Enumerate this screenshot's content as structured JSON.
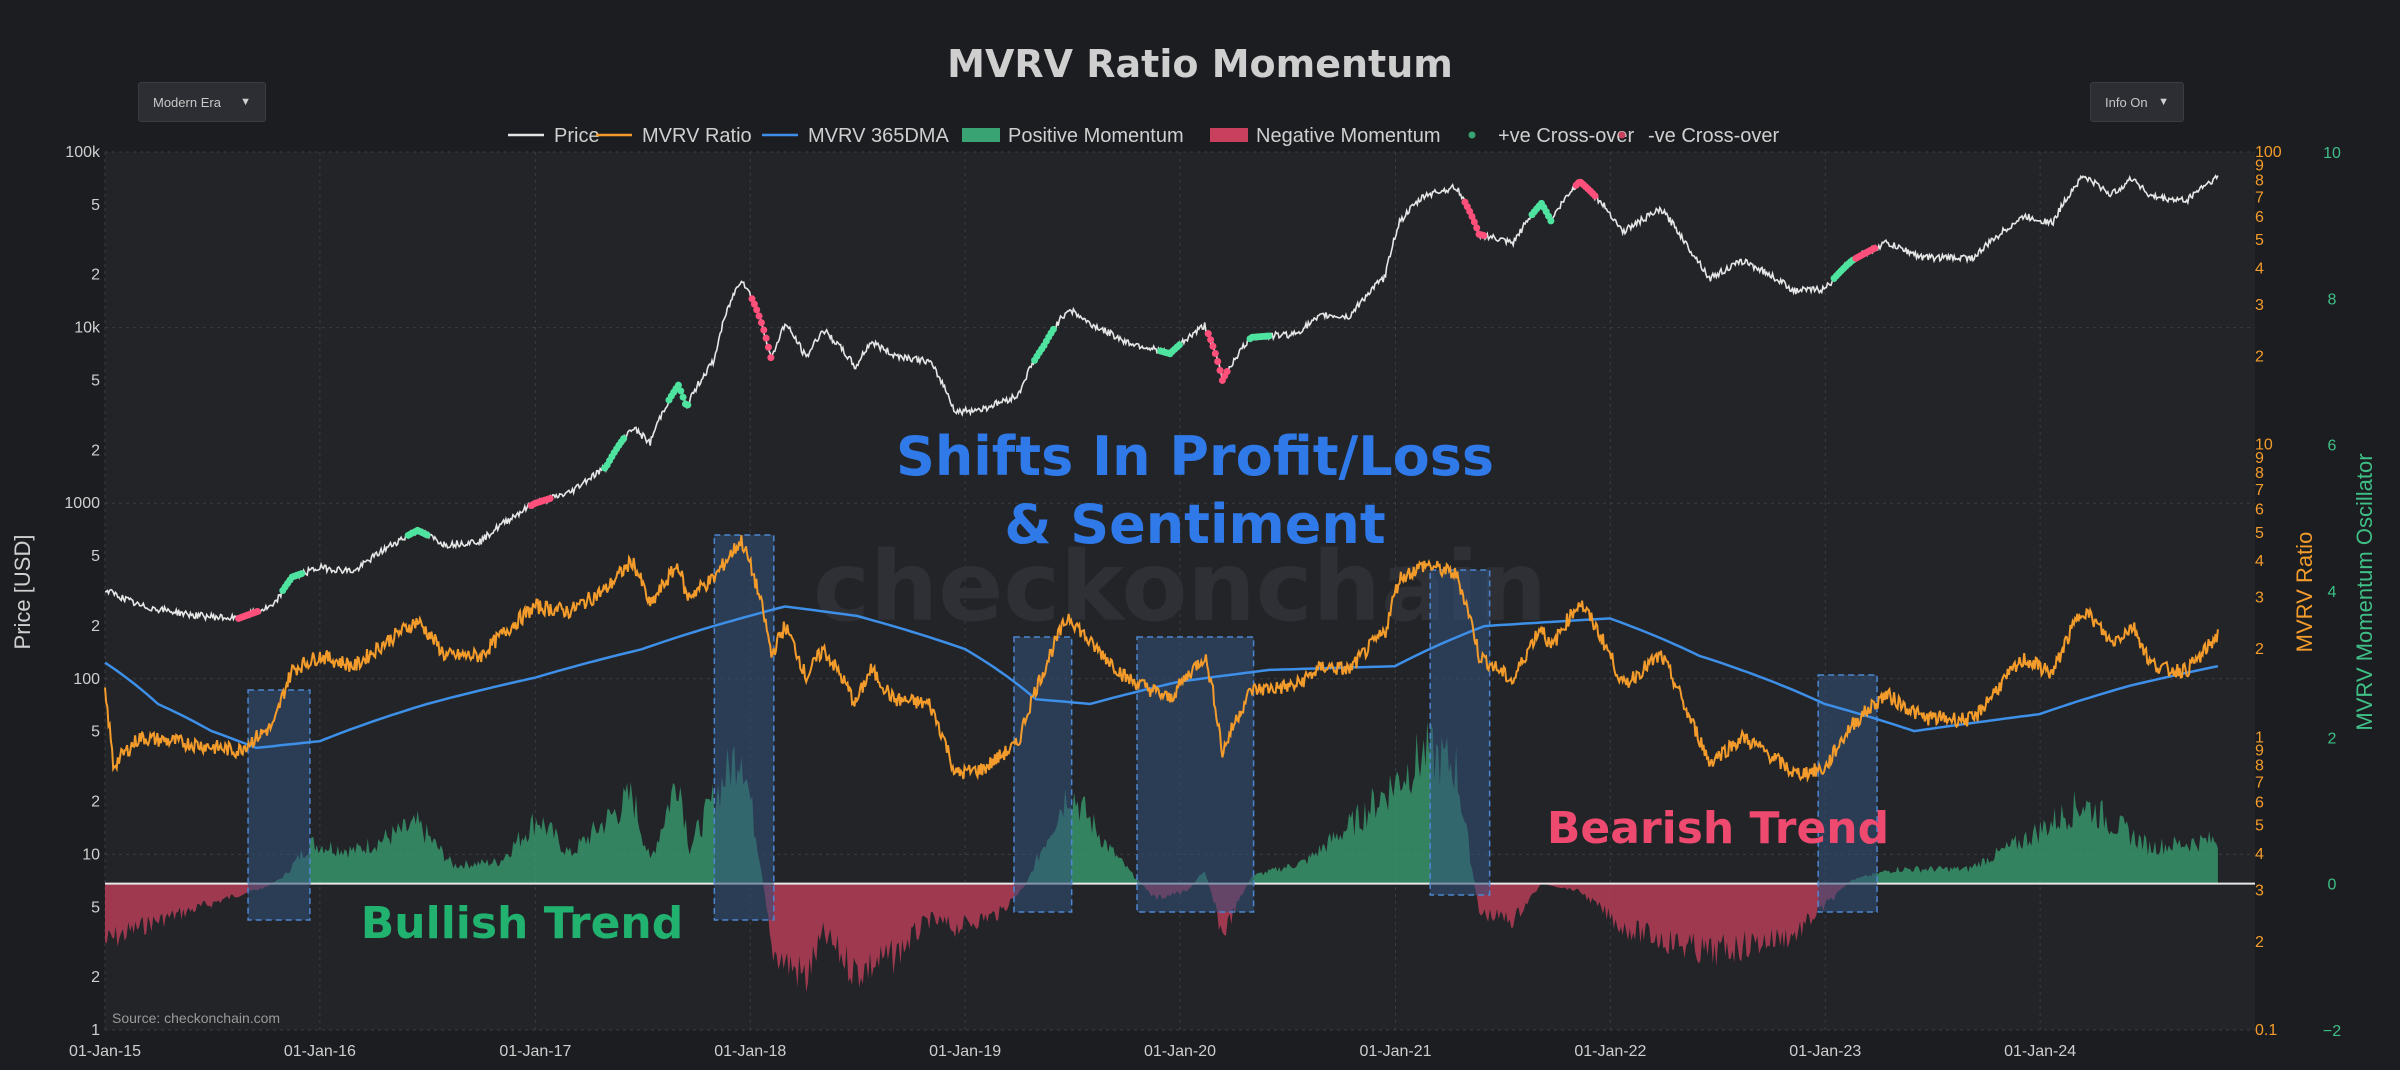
{
  "title": "MVRV Ratio Momentum",
  "controls": {
    "era_dropdown": "Modern Era",
    "info_dropdown": "Info On"
  },
  "source": "Source: checkonchain.com",
  "watermark": "checkonchain",
  "colors": {
    "background": "#1c1d21",
    "plot_bg": "#232428",
    "price": "#e6e6e6",
    "mvrv": "#f39c2b",
    "dma": "#3d8fe8",
    "positive": "#3aa374",
    "negative": "#c9405e",
    "pos_cross": "#4fe3a0",
    "neg_cross": "#ff4f7b",
    "highlight": "#33517a"
  },
  "chart_data": {
    "type": "line",
    "legend": [
      "Price",
      "MVRV Ratio",
      "MVRV 365DMA",
      "Positive Momentum",
      "Negative Momentum",
      "+ve Cross-over",
      "-ve Cross-over"
    ],
    "axes": {
      "x_ticks": [
        "01-Jan-15",
        "01-Jan-16",
        "01-Jan-17",
        "01-Jan-18",
        "01-Jan-19",
        "01-Jan-20",
        "01-Jan-21",
        "01-Jan-22",
        "01-Jan-23",
        "01-Jan-24"
      ],
      "x_range": [
        "2015-01-01",
        "2024-12-31"
      ],
      "price": {
        "title": "Price [USD]",
        "scale": "log",
        "range": [
          1,
          100000
        ],
        "ticks": [
          "100k",
          "5",
          "2",
          "10k",
          "5",
          "2",
          "1000",
          "5",
          "2",
          "100",
          "5",
          "2",
          "10",
          "5",
          "2",
          "1"
        ]
      },
      "mvrv": {
        "title": "MVRV Ratio",
        "scale": "log",
        "range": [
          0.1,
          100
        ],
        "ticks": [
          "100",
          "9",
          "8",
          "7",
          "6",
          "5",
          "4",
          "3",
          "2",
          "10",
          "9",
          "8",
          "7",
          "6",
          "5",
          "4",
          "3",
          "2",
          "1",
          "9",
          "8",
          "7",
          "6",
          "5",
          "4",
          "3",
          "2",
          "0.1"
        ]
      },
      "oscillator": {
        "title": "MVRV Momentum Oscillator",
        "range": [
          -2,
          10
        ],
        "ticks": [
          "10",
          "8",
          "6",
          "4",
          "2",
          "0",
          "−2"
        ]
      }
    },
    "price_series": [
      [
        "2015-01-01",
        320
      ],
      [
        "2015-03-01",
        260
      ],
      [
        "2015-06-01",
        230
      ],
      [
        "2015-08-15",
        220
      ],
      [
        "2015-10-15",
        260
      ],
      [
        "2015-11-15",
        380
      ],
      [
        "2016-01-01",
        430
      ],
      [
        "2016-03-01",
        410
      ],
      [
        "2016-06-15",
        700
      ],
      [
        "2016-08-01",
        580
      ],
      [
        "2016-10-01",
        610
      ],
      [
        "2017-01-01",
        1000
      ],
      [
        "2017-03-01",
        1150
      ],
      [
        "2017-05-01",
        1600
      ],
      [
        "2017-06-15",
        2700
      ],
      [
        "2017-07-15",
        2200
      ],
      [
        "2017-09-01",
        4700
      ],
      [
        "2017-09-15",
        3500
      ],
      [
        "2017-11-01",
        6500
      ],
      [
        "2017-12-17",
        19000
      ],
      [
        "2018-02-06",
        6500
      ],
      [
        "2018-03-01",
        10500
      ],
      [
        "2018-04-06",
        6700
      ],
      [
        "2018-05-05",
        9700
      ],
      [
        "2018-06-29",
        5900
      ],
      [
        "2018-07-25",
        8300
      ],
      [
        "2018-09-01",
        7000
      ],
      [
        "2018-11-01",
        6400
      ],
      [
        "2018-12-15",
        3300
      ],
      [
        "2019-02-01",
        3450
      ],
      [
        "2019-04-01",
        4100
      ],
      [
        "2019-05-15",
        7900
      ],
      [
        "2019-06-26",
        12800
      ],
      [
        "2019-08-01",
        10500
      ],
      [
        "2019-10-01",
        8300
      ],
      [
        "2019-12-15",
        7100
      ],
      [
        "2020-02-12",
        10300
      ],
      [
        "2020-03-13",
        5000
      ],
      [
        "2020-05-01",
        8800
      ],
      [
        "2020-07-15",
        9200
      ],
      [
        "2020-09-01",
        11800
      ],
      [
        "2020-10-15",
        11500
      ],
      [
        "2020-12-15",
        19500
      ],
      [
        "2021-01-08",
        40000
      ],
      [
        "2021-02-21",
        57000
      ],
      [
        "2021-04-14",
        63000
      ],
      [
        "2021-05-23",
        34000
      ],
      [
        "2021-07-20",
        30000
      ],
      [
        "2021-09-06",
        51000
      ],
      [
        "2021-09-22",
        40500
      ],
      [
        "2021-11-10",
        68000
      ],
      [
        "2022-01-22",
        35000
      ],
      [
        "2022-03-28",
        47000
      ],
      [
        "2022-05-12",
        29000
      ],
      [
        "2022-06-18",
        19000
      ],
      [
        "2022-08-15",
        24000
      ],
      [
        "2022-11-10",
        16200
      ],
      [
        "2023-01-01",
        16600
      ],
      [
        "2023-02-15",
        24000
      ],
      [
        "2023-04-14",
        30400
      ],
      [
        "2023-06-15",
        25100
      ],
      [
        "2023-09-11",
        25000
      ],
      [
        "2023-10-24",
        34000
      ],
      [
        "2023-12-05",
        43000
      ],
      [
        "2024-01-23",
        39500
      ],
      [
        "2024-03-14",
        73000
      ],
      [
        "2024-05-01",
        57000
      ],
      [
        "2024-06-07",
        71000
      ],
      [
        "2024-07-05",
        56000
      ],
      [
        "2024-08-05",
        54000
      ],
      [
        "2024-09-06",
        53000
      ],
      [
        "2024-10-01",
        63000
      ],
      [
        "2024-10-29",
        72000
      ]
    ],
    "mvrv_series": [
      [
        "2015-01-01",
        1.4
      ],
      [
        "2015-01-15",
        0.8
      ],
      [
        "2015-03-01",
        1.0
      ],
      [
        "2015-06-01",
        0.95
      ],
      [
        "2015-08-15",
        0.9
      ],
      [
        "2015-10-15",
        1.1
      ],
      [
        "2015-11-15",
        1.7
      ],
      [
        "2016-01-01",
        1.9
      ],
      [
        "2016-03-01",
        1.75
      ],
      [
        "2016-06-15",
        2.5
      ],
      [
        "2016-08-01",
        1.9
      ],
      [
        "2016-10-01",
        1.9
      ],
      [
        "2017-01-01",
        2.8
      ],
      [
        "2017-03-01",
        2.7
      ],
      [
        "2017-05-01",
        3.2
      ],
      [
        "2017-06-15",
        4.0
      ],
      [
        "2017-07-15",
        2.8
      ],
      [
        "2017-09-01",
        3.9
      ],
      [
        "2017-09-15",
        3.0
      ],
      [
        "2017-11-01",
        3.5
      ],
      [
        "2017-12-17",
        4.7
      ],
      [
        "2018-02-06",
        1.9
      ],
      [
        "2018-03-01",
        2.4
      ],
      [
        "2018-04-06",
        1.6
      ],
      [
        "2018-05-05",
        2.0
      ],
      [
        "2018-06-29",
        1.3
      ],
      [
        "2018-07-25",
        1.7
      ],
      [
        "2018-09-01",
        1.35
      ],
      [
        "2018-11-01",
        1.3
      ],
      [
        "2018-12-15",
        0.75
      ],
      [
        "2019-02-01",
        0.78
      ],
      [
        "2019-04-01",
        0.95
      ],
      [
        "2019-05-15",
        1.7
      ],
      [
        "2019-06-26",
        2.6
      ],
      [
        "2019-08-01",
        2.1
      ],
      [
        "2019-10-01",
        1.6
      ],
      [
        "2019-12-15",
        1.35
      ],
      [
        "2020-02-12",
        1.9
      ],
      [
        "2020-03-13",
        0.88
      ],
      [
        "2020-05-01",
        1.45
      ],
      [
        "2020-07-15",
        1.5
      ],
      [
        "2020-09-01",
        1.75
      ],
      [
        "2020-10-15",
        1.7
      ],
      [
        "2020-12-15",
        2.3
      ],
      [
        "2021-01-08",
        3.5
      ],
      [
        "2021-02-21",
        3.9
      ],
      [
        "2021-04-14",
        3.6
      ],
      [
        "2021-05-23",
        1.9
      ],
      [
        "2021-07-20",
        1.55
      ],
      [
        "2021-09-06",
        2.4
      ],
      [
        "2021-09-22",
        2.0
      ],
      [
        "2021-11-10",
        2.9
      ],
      [
        "2022-01-22",
        1.5
      ],
      [
        "2022-03-28",
        1.9
      ],
      [
        "2022-05-12",
        1.2
      ],
      [
        "2022-06-18",
        0.82
      ],
      [
        "2022-08-15",
        1.0
      ],
      [
        "2022-11-10",
        0.75
      ],
      [
        "2023-01-01",
        0.78
      ],
      [
        "2023-02-15",
        1.1
      ],
      [
        "2023-04-14",
        1.4
      ],
      [
        "2023-06-15",
        1.17
      ],
      [
        "2023-09-11",
        1.15
      ],
      [
        "2023-10-24",
        1.5
      ],
      [
        "2023-12-05",
        1.85
      ],
      [
        "2024-01-23",
        1.65
      ],
      [
        "2024-03-14",
        2.75
      ],
      [
        "2024-05-01",
        2.1
      ],
      [
        "2024-06-07",
        2.4
      ],
      [
        "2024-07-05",
        1.8
      ],
      [
        "2024-08-05",
        1.7
      ],
      [
        "2024-09-06",
        1.7
      ],
      [
        "2024-10-01",
        1.9
      ],
      [
        "2024-10-29",
        2.25
      ]
    ],
    "mvrv_365dma_series": [
      [
        "2015-01-01",
        1.8
      ],
      [
        "2015-04-01",
        1.3
      ],
      [
        "2015-07-01",
        1.05
      ],
      [
        "2015-09-15",
        0.92
      ],
      [
        "2016-01-01",
        0.97
      ],
      [
        "2016-07-01",
        1.3
      ],
      [
        "2017-01-01",
        1.6
      ],
      [
        "2017-07-01",
        2.0
      ],
      [
        "2017-12-31",
        2.6
      ],
      [
        "2018-03-01",
        2.8
      ],
      [
        "2018-07-01",
        2.6
      ],
      [
        "2019-01-01",
        2.0
      ],
      [
        "2019-05-01",
        1.35
      ],
      [
        "2019-08-01",
        1.3
      ],
      [
        "2019-12-31",
        1.55
      ],
      [
        "2020-06-01",
        1.7
      ],
      [
        "2020-12-31",
        1.75
      ],
      [
        "2021-06-01",
        2.4
      ],
      [
        "2021-12-31",
        2.55
      ],
      [
        "2022-06-01",
        1.9
      ],
      [
        "2022-12-31",
        1.3
      ],
      [
        "2023-06-01",
        1.05
      ],
      [
        "2023-12-31",
        1.2
      ],
      [
        "2024-06-01",
        1.5
      ],
      [
        "2024-10-29",
        1.75
      ]
    ],
    "momentum_series": [
      [
        "2015-01-01",
        -0.8
      ],
      [
        "2015-03-15",
        -0.55
      ],
      [
        "2015-06-01",
        -0.35
      ],
      [
        "2015-08-15",
        -0.15
      ],
      [
        "2015-10-01",
        -0.05
      ],
      [
        "2015-11-01",
        0.1
      ],
      [
        "2015-12-15",
        0.55
      ],
      [
        "2016-03-01",
        0.45
      ],
      [
        "2016-06-15",
        0.8
      ],
      [
        "2016-08-15",
        0.25
      ],
      [
        "2016-11-01",
        0.3
      ],
      [
        "2017-01-05",
        0.9
      ],
      [
        "2017-03-01",
        0.4
      ],
      [
        "2017-06-15",
        1.2
      ],
      [
        "2017-07-15",
        0.3
      ],
      [
        "2017-09-01",
        1.5
      ],
      [
        "2017-09-20",
        0.5
      ],
      [
        "2017-12-17",
        1.9
      ],
      [
        "2018-01-20",
        0.2
      ],
      [
        "2018-02-06",
        -0.9
      ],
      [
        "2018-04-06",
        -1.3
      ],
      [
        "2018-05-05",
        -0.7
      ],
      [
        "2018-06-29",
        -1.2
      ],
      [
        "2018-09-01",
        -1.0
      ],
      [
        "2018-11-01",
        -0.5
      ],
      [
        "2018-12-15",
        -0.6
      ],
      [
        "2019-03-01",
        -0.4
      ],
      [
        "2019-04-15",
        0.0
      ],
      [
        "2019-06-26",
        1.3
      ],
      [
        "2019-09-01",
        0.5
      ],
      [
        "2019-10-15",
        0.1
      ],
      [
        "2019-11-20",
        -0.2
      ],
      [
        "2020-01-15",
        -0.1
      ],
      [
        "2020-02-12",
        0.2
      ],
      [
        "2020-03-13",
        -0.7
      ],
      [
        "2020-05-01",
        0.1
      ],
      [
        "2020-08-01",
        0.3
      ],
      [
        "2020-11-01",
        0.9
      ],
      [
        "2021-02-21",
        1.8
      ],
      [
        "2021-04-14",
        1.6
      ],
      [
        "2021-05-23",
        -0.4
      ],
      [
        "2021-07-20",
        -0.5
      ],
      [
        "2021-09-06",
        0.0
      ],
      [
        "2021-11-10",
        -0.1
      ],
      [
        "2022-01-22",
        -0.6
      ],
      [
        "2022-06-18",
        -0.95
      ],
      [
        "2022-11-10",
        -0.7
      ],
      [
        "2023-01-01",
        -0.3
      ],
      [
        "2023-02-15",
        0.05
      ],
      [
        "2023-05-01",
        0.2
      ],
      [
        "2023-09-01",
        0.2
      ],
      [
        "2023-12-05",
        0.6
      ],
      [
        "2024-03-14",
        1.1
      ],
      [
        "2024-07-05",
        0.5
      ],
      [
        "2024-10-29",
        0.6
      ]
    ],
    "highlight_periods": [
      [
        "2015-09-01",
        "2015-12-15"
      ],
      [
        "2017-11-01",
        "2018-02-10"
      ],
      [
        "2019-03-25",
        "2019-07-01"
      ],
      [
        "2019-10-20",
        "2020-05-05"
      ],
      [
        "2021-03-01",
        "2021-06-10"
      ],
      [
        "2022-12-20",
        "2023-03-30"
      ]
    ],
    "pos_crossovers": [
      "2015-11-15",
      "2016-06-15",
      "2017-05-15",
      "2017-09-01",
      "2019-05-15",
      "2019-12-15",
      "2020-05-15",
      "2021-09-06",
      "2023-02-01"
    ],
    "neg_crossovers": [
      "2015-09-01",
      "2017-01-10",
      "2018-01-20",
      "2020-03-05",
      "2021-05-15",
      "2021-11-20",
      "2023-03-10"
    ],
    "annotations": {
      "center_line1": "Shifts In Profit/Loss",
      "center_line2": "& Sentiment",
      "bullish": "Bullish Trend",
      "bearish": "Bearish Trend"
    }
  }
}
